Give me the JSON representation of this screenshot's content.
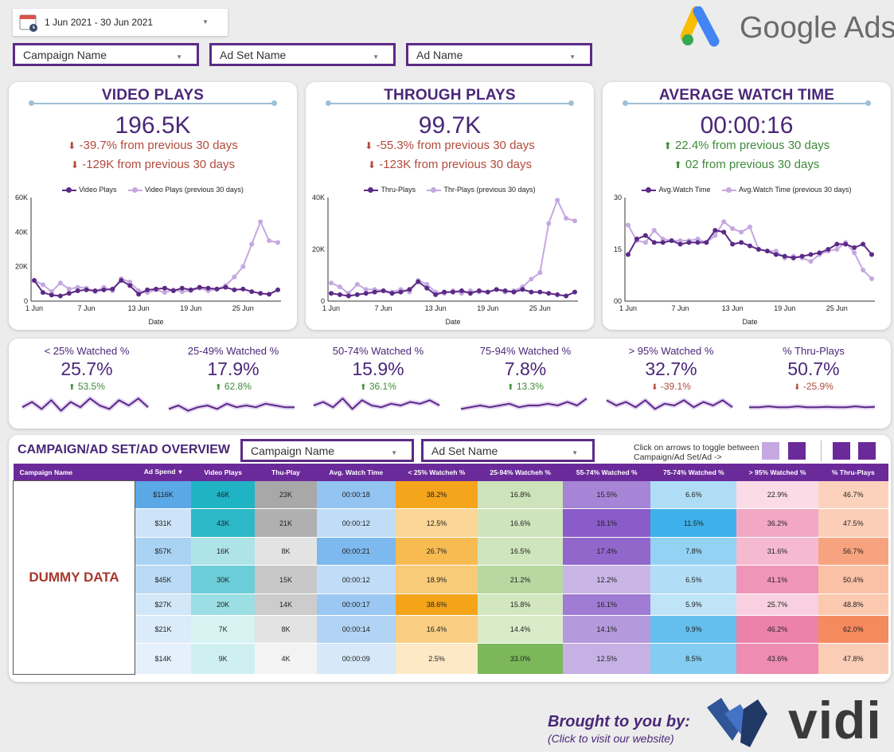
{
  "filters": {
    "date_range": "1 Jun 2021 - 30 Jun 2021",
    "campaign": "Campaign Name",
    "adset": "Ad Set Name",
    "ad": "Ad Name"
  },
  "brand": {
    "name": "Google Ads"
  },
  "kpis": [
    {
      "title": "VIDEO PLAYS",
      "value": "196.5K",
      "delta1": "-39.7% from previous 30 days",
      "delta2": "-129K from previous 30 days",
      "direction": "down",
      "legend_current": "Video Plays",
      "legend_previous": "Video Plays (previous 30 days)"
    },
    {
      "title": "THROUGH PLAYS",
      "value": "99.7K",
      "delta1": "-55.3% from previous 30 days",
      "delta2": "-123K from previous 30 days",
      "direction": "down",
      "legend_current": "Thru-Plays",
      "legend_previous": "Thr-Plays (previous 30 days)"
    },
    {
      "title": "AVERAGE WATCH TIME",
      "value": "00:00:16",
      "delta1": "22.4% from previous 30 days",
      "delta2": "02 from previous 30 days",
      "direction": "up",
      "legend_current": "Avg.Watch Time",
      "legend_previous": "Avg.Watch Time (previous 30 days)"
    }
  ],
  "colors": {
    "current": "#5b2a86",
    "previous": "#c5a8df",
    "neg": "#b24a3c",
    "pos": "#3f8a3a",
    "header": "#6b2a9a"
  },
  "chart_data": [
    {
      "type": "line",
      "xlabel": "Date",
      "x_ticks": [
        "1 Jun",
        "7 Jun",
        "13 Jun",
        "19 Jun",
        "25 Jun"
      ],
      "y_ticks": [
        "0",
        "20K",
        "40K",
        "60K"
      ],
      "ylim": [
        0,
        60000
      ],
      "series": [
        {
          "name": "Video Plays",
          "values": [
            12000,
            5000,
            3500,
            3000,
            4500,
            6000,
            6500,
            6000,
            6500,
            7000,
            12000,
            9000,
            4000,
            6500,
            7000,
            7500,
            6000,
            7500,
            6500,
            8000,
            7500,
            7000,
            8000,
            6500,
            7000,
            5500,
            4500,
            4000,
            6500
          ]
        },
        {
          "name": "Video Plays (previous 30 days)",
          "values": [
            12000,
            9500,
            5500,
            10500,
            7000,
            8000,
            7500,
            5500,
            8000,
            6000,
            13000,
            11000,
            6000,
            5000,
            6500,
            5000,
            6500,
            5500,
            6000,
            7500,
            6000,
            7000,
            9000,
            14000,
            20000,
            33000,
            46000,
            35000,
            34000
          ]
        }
      ]
    },
    {
      "type": "line",
      "xlabel": "Date",
      "x_ticks": [
        "1 Jun",
        "7 Jun",
        "13 Jun",
        "19 Jun",
        "25 Jun"
      ],
      "y_ticks": [
        "0",
        "20K",
        "40K"
      ],
      "ylim": [
        0,
        40000
      ],
      "series": [
        {
          "name": "Thru-Plays",
          "values": [
            3000,
            2500,
            2000,
            2500,
            3000,
            3500,
            4000,
            3000,
            3500,
            4500,
            7500,
            5000,
            2500,
            3500,
            3500,
            4000,
            3000,
            4000,
            3500,
            4500,
            4000,
            3500,
            4500,
            3500,
            3500,
            3000,
            2500,
            2000,
            3500
          ]
        },
        {
          "name": "Thr-Plays (previous 30 days)",
          "values": [
            7000,
            5500,
            3000,
            6500,
            4500,
            4500,
            4000,
            3500,
            4500,
            3500,
            8000,
            6500,
            3500,
            3000,
            4000,
            3000,
            4000,
            3500,
            3500,
            4500,
            3500,
            4000,
            5500,
            8500,
            11000,
            30000,
            39000,
            32000,
            31000
          ]
        }
      ]
    },
    {
      "type": "line",
      "xlabel": "Date",
      "x_ticks": [
        "1 Jun",
        "7 Jun",
        "13 Jun",
        "19 Jun",
        "25 Jun"
      ],
      "y_ticks": [
        "00",
        "15",
        "30"
      ],
      "ylim": [
        0,
        30
      ],
      "series": [
        {
          "name": "Avg.Watch Time",
          "values": [
            13.5,
            18,
            19,
            17,
            17,
            17.5,
            16.5,
            17,
            17,
            17,
            20.5,
            20,
            16.5,
            17,
            16,
            15,
            14.5,
            13.5,
            13,
            12.5,
            13,
            13.5,
            14,
            15,
            16.5,
            16.5,
            15.5,
            16.5,
            13.5
          ]
        },
        {
          "name": "Avg.Watch Time (previous 30 days)",
          "values": [
            22,
            17.5,
            17,
            20.5,
            18,
            17.5,
            17.5,
            17.5,
            18,
            17,
            19,
            23,
            21,
            20,
            21.5,
            15,
            14.5,
            14.5,
            12.5,
            13,
            12.5,
            11.5,
            13.5,
            14.5,
            15,
            17,
            14,
            9,
            6.5
          ]
        }
      ]
    }
  ],
  "small_metrics": [
    {
      "label": "< 25% Watched %",
      "value": "25.7%",
      "change": "53.5%",
      "direction": "up"
    },
    {
      "label": "25-49% Watched %",
      "value": "17.9%",
      "change": "62.8%",
      "direction": "up"
    },
    {
      "label": "50-74% Watched %",
      "value": "15.9%",
      "change": "36.1%",
      "direction": "up"
    },
    {
      "label": "75-94% Watched %",
      "value": "7.8%",
      "change": "13.3%",
      "direction": "up"
    },
    {
      "label": "> 95% Watched %",
      "value": "32.7%",
      "change": "-39.1%",
      "direction": "down"
    },
    {
      "label": "% Thru-Plays",
      "value": "50.7%",
      "change": "-25.9%",
      "direction": "down"
    }
  ],
  "overview": {
    "title": "CAMPAIGN/AD SET/AD OVERVIEW",
    "campaign_filter": "Campaign Name",
    "adset_filter": "Ad Set Name",
    "toggle_hint_1": "Click on arrows to toggle between",
    "toggle_hint_2": "Campaign/Ad Set/Ad ->",
    "dummy": "DUMMY DATA",
    "columns": [
      "Campaign Name",
      "Ad Spend",
      "Video Plays",
      "Thu-Play",
      "Avg. Watch Time",
      "< 25% Watcheh %",
      "25-94% Watcheh %",
      "55-74% Watched %",
      "75-74% Watched %",
      "> 95% Watched %",
      "% Thru-Plays"
    ],
    "sort_icon": "▾",
    "rows": [
      [
        "$116K",
        "46K",
        "23K",
        "00:00:18",
        "38.2%",
        "16.8%",
        "15.5%",
        "6.6%",
        "22.9%",
        "46.7%"
      ],
      [
        "$31K",
        "43K",
        "21K",
        "00:00:12",
        "12.5%",
        "16.6%",
        "18.1%",
        "11.5%",
        "36.2%",
        "47.5%"
      ],
      [
        "$57K",
        "16K",
        "8K",
        "00:00:21",
        "26.7%",
        "16.5%",
        "17.4%",
        "7.8%",
        "31.6%",
        "56.7%"
      ],
      [
        "$45K",
        "30K",
        "15K",
        "00:00:12",
        "18.9%",
        "21.2%",
        "12.2%",
        "6.5%",
        "41.1%",
        "50.4%"
      ],
      [
        "$27K",
        "20K",
        "14K",
        "00:00:17",
        "38.6%",
        "15.8%",
        "16.1%",
        "5.9%",
        "25.7%",
        "48.8%"
      ],
      [
        "$21K",
        "7K",
        "8K",
        "00:00:14",
        "16.4%",
        "14.4%",
        "14.1%",
        "9.9%",
        "46.2%",
        "62.0%"
      ],
      [
        "$14K",
        "9K",
        "4K",
        "00:00:09",
        "2.5%",
        "33.0%",
        "12.5%",
        "8.5%",
        "43.6%",
        "47.8%"
      ]
    ]
  },
  "footer": {
    "brought": "Brought to you by:",
    "click": "(Click to visit our website)",
    "logo_text": "vidi"
  }
}
